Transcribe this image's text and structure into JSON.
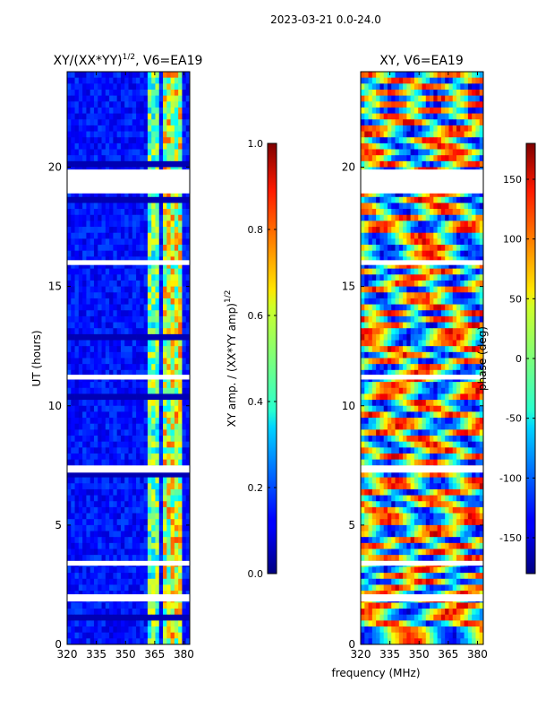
{
  "suptitle": "2023-03-21 0.0-24.0",
  "chart_data": [
    {
      "type": "heatmap",
      "title_main": "XY/(XX*YY)",
      "title_exp": "1/2",
      "title_tail": ", V6=EA19",
      "xlabel": "",
      "ylabel": "UT (hours)",
      "xlim": [
        320,
        383
      ],
      "ylim": [
        0,
        24
      ],
      "x_ticks": [
        320,
        335,
        350,
        365,
        380
      ],
      "y_ticks": [
        0,
        5,
        10,
        15,
        20
      ],
      "colorbar": {
        "label_main": "XY amp. / (XX*YY amp)",
        "label_exp": "1/2",
        "range": [
          0.0,
          1.0
        ],
        "ticks": [
          "0.0",
          "0.2",
          "0.4",
          "0.6",
          "0.8",
          "1.0"
        ],
        "tick_values": [
          0.0,
          0.2,
          0.4,
          0.6,
          0.8,
          1.0
        ]
      },
      "flagged_bands_hours": [
        [
          18.9,
          19.9
        ],
        [
          11.1,
          11.3
        ],
        [
          7.2,
          7.5
        ],
        [
          1.8,
          2.1
        ],
        [
          3.3,
          3.5
        ],
        [
          15.9,
          16.1
        ]
      ]
    },
    {
      "type": "heatmap",
      "title_main": "XY, V6=EA19",
      "xlabel": "frequency (MHz)",
      "ylabel": "",
      "xlim": [
        320,
        383
      ],
      "ylim": [
        0,
        24
      ],
      "x_ticks": [
        320,
        335,
        350,
        365,
        380
      ],
      "y_ticks": [
        0,
        5,
        10,
        15,
        20
      ],
      "colorbar": {
        "label_main": "phase (deg)",
        "range": [
          -180,
          180
        ],
        "ticks": [
          "-150",
          "-100",
          "-50",
          "0",
          "50",
          "100",
          "150"
        ],
        "tick_values": [
          -150,
          -100,
          -50,
          0,
          50,
          100,
          150
        ]
      },
      "flagged_bands_hours": [
        [
          18.9,
          19.9
        ],
        [
          11.1,
          11.3
        ],
        [
          7.2,
          7.5
        ],
        [
          1.8,
          2.1
        ],
        [
          3.3,
          3.5
        ],
        [
          15.9,
          16.1
        ]
      ]
    }
  ]
}
